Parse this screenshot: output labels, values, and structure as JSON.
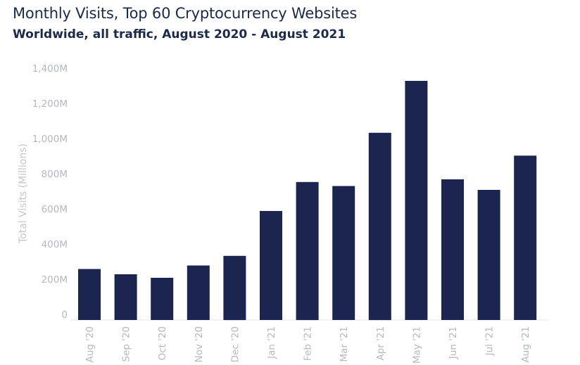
{
  "header": {
    "title": "Monthly Visits, Top 60 Cryptocurrency Websites",
    "subtitle": "Worldwide, all traffic, August 2020 - August 2021"
  },
  "chart_data": {
    "type": "bar",
    "title": "Monthly Visits, Top 60 Cryptocurrency Websites",
    "subtitle": "Worldwide, all traffic, August 2020 - August 2021",
    "xlabel": "",
    "ylabel": "Total Visits (Millions)",
    "categories": [
      "Aug '20",
      "Sep '20",
      "Oct '20",
      "Nov '20",
      "Dec '20",
      "Jan '21",
      "Feb '21",
      "Mar '21",
      "Apr '21",
      "May '21",
      "Jun '21",
      "Jul '21",
      "Aug '21"
    ],
    "values": [
      290,
      260,
      240,
      310,
      365,
      620,
      785,
      762,
      1065,
      1360,
      800,
      740,
      935
    ],
    "yticks": [
      0,
      200,
      400,
      600,
      800,
      1000,
      1200,
      1400
    ],
    "ytick_labels": [
      "0",
      "200M",
      "400M",
      "600M",
      "800M",
      "1,000M",
      "1,200M",
      "1,400M"
    ],
    "ylim": [
      0,
      1400
    ],
    "grid": false,
    "bar_color": "#1c2550",
    "axis_color": "#e3e5ea",
    "tick_color": "#b5b8c0"
  }
}
